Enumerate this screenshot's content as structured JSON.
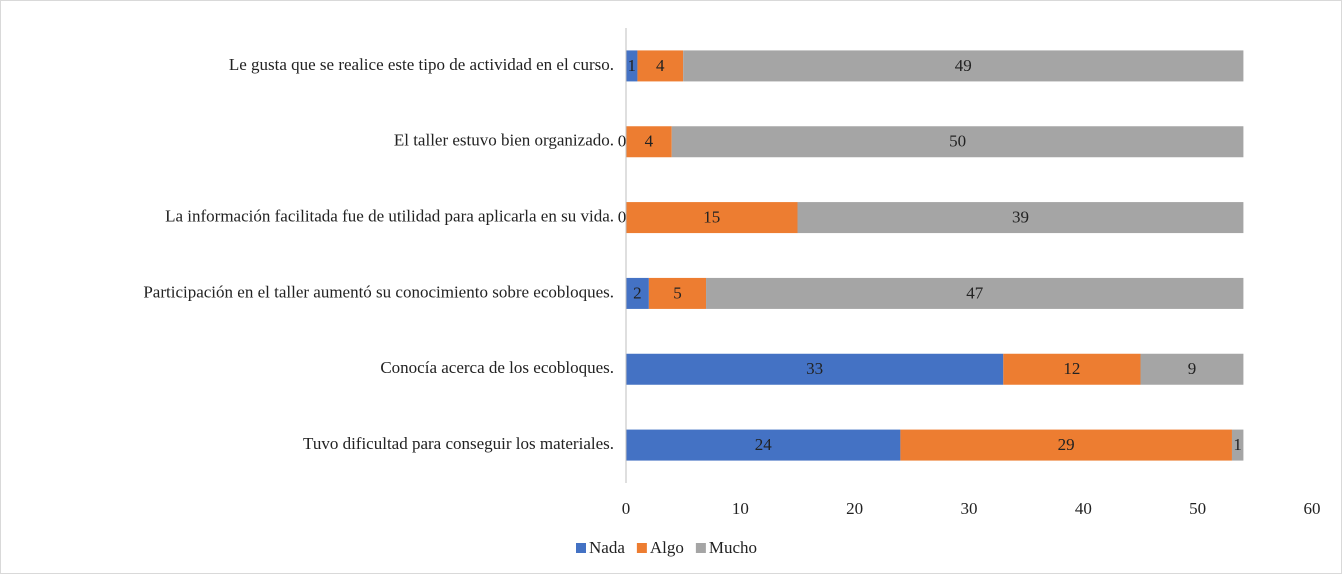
{
  "chart_data": {
    "type": "stacked-bar-horizontal",
    "categories": [
      "Le gusta que se realice este tipo de actividad en el curso.",
      "El taller estuvo bien organizado.",
      "La información facilitada fue de utilidad para aplicarla en su vida.",
      "Participación en el taller aumentó su conocimiento sobre ecobloques.",
      "Conocía acerca de los ecobloques.",
      "Tuvo dificultad para conseguir los materiales."
    ],
    "series": [
      {
        "name": "Nada",
        "color": "#4472c4",
        "values": [
          1,
          0,
          0,
          2,
          33,
          24
        ]
      },
      {
        "name": "Algo",
        "color": "#ed7d31",
        "values": [
          4,
          4,
          15,
          5,
          12,
          29
        ]
      },
      {
        "name": "Mucho",
        "color": "#a5a5a5",
        "values": [
          49,
          50,
          39,
          47,
          9,
          1
        ]
      }
    ],
    "xlim": [
      0,
      60
    ],
    "xticks": [
      0,
      10,
      20,
      30,
      40,
      50,
      60
    ],
    "grid": false,
    "legend": "bottom"
  }
}
